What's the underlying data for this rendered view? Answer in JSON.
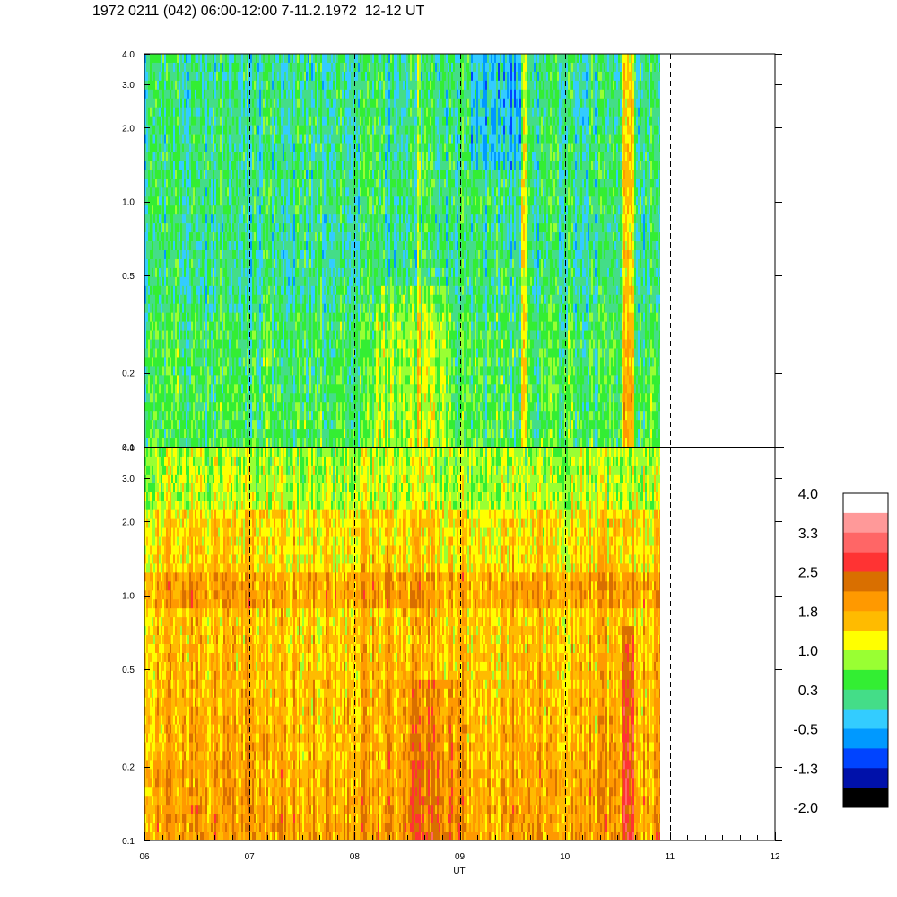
{
  "title": "1972 0211 (042) 06:00-12:00 7-11.2.1972  12-12 UT",
  "chart_data": {
    "type": "heatmap",
    "title": "1972 0211 (042) 06:00-12:00 7-11.2.1972  12-12 UT",
    "xlabel": "UT",
    "x_ticks": [
      "06",
      "07",
      "08",
      "09",
      "10",
      "11",
      "12"
    ],
    "xlim": [
      6,
      12
    ],
    "data_end_hour": 10.9,
    "dashed_hour_lines": [
      7,
      8,
      9,
      10,
      11
    ],
    "panels": [
      {
        "name": "upper",
        "ylim": [
          0.1,
          4.0
        ],
        "y_scale": "log",
        "y_ticks": [
          "0.1",
          "0.2",
          "0.5",
          "1.0",
          "2.0",
          "3.0",
          "4.0"
        ],
        "dominant_levels": "about -0.5 to 1.0 (cyan / green / yellow), with orange streaks near 08.6, 09.6 and 10.6 UT"
      },
      {
        "name": "lower",
        "ylim": [
          0.1,
          4.0
        ],
        "y_scale": "log",
        "y_ticks": [
          "0.1",
          "0.2",
          "0.5",
          "1.0",
          "2.0",
          "3.0",
          "4.0"
        ],
        "dominant_levels": "about 1.0 to 2.5 (yellow / orange / dark orange), band near 1.1-1.3, red streak near 10.6 UT"
      }
    ],
    "colorbar": {
      "labels": [
        "4.0",
        "3.3",
        "2.5",
        "1.8",
        "1.0",
        "0.3",
        "-0.5",
        "-1.3",
        "-2.0"
      ],
      "colors": [
        "#ffffff",
        "#ff9999",
        "#ff6666",
        "#ff3333",
        "#d96f00",
        "#ff9900",
        "#ffbb00",
        "#ffff00",
        "#99ff33",
        "#33ee33",
        "#44dd88",
        "#33ccff",
        "#0099ff",
        "#0044ff",
        "#0011aa",
        "#000000"
      ]
    }
  }
}
